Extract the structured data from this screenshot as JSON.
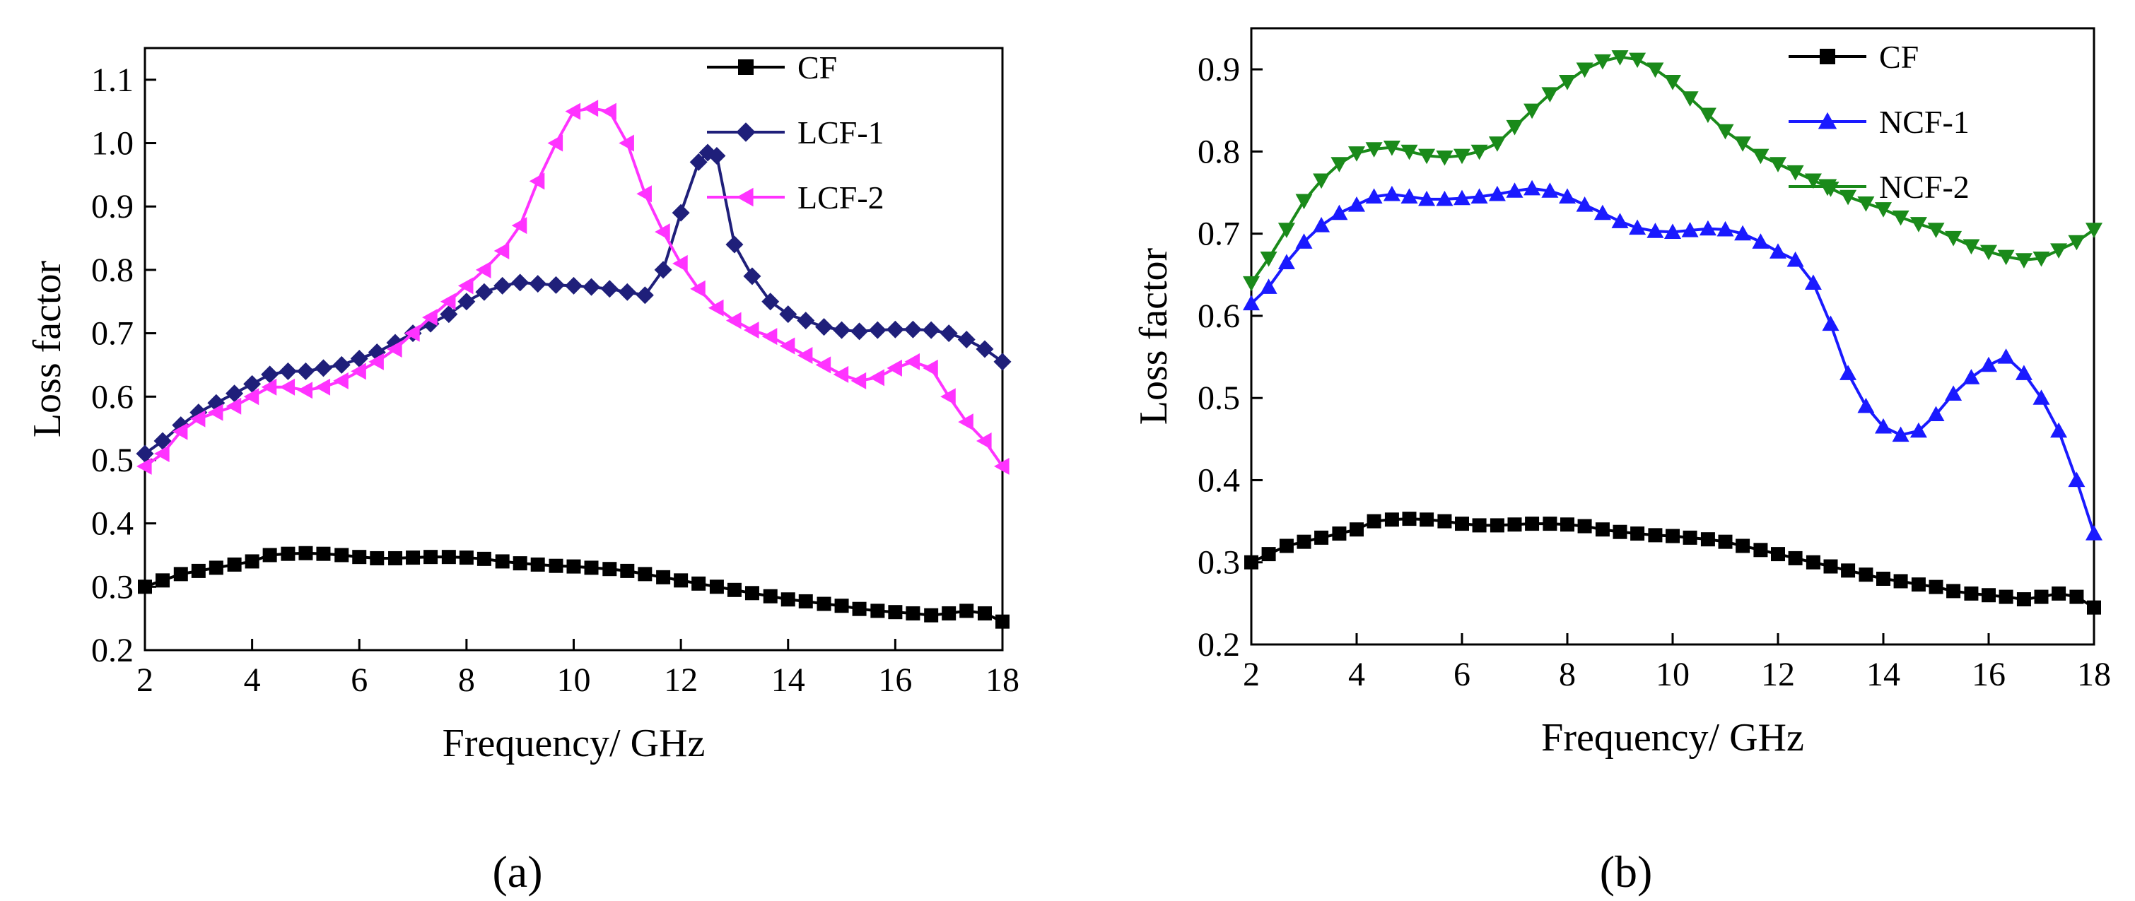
{
  "chart_data": [
    {
      "type": "line",
      "panel_label": "(a)",
      "xlabel": "Frequency/ GHz",
      "ylabel": "Loss factor",
      "xlim": [
        2,
        18
      ],
      "ylim": [
        0.2,
        1.15
      ],
      "xticks": [
        2,
        4,
        6,
        8,
        10,
        12,
        14,
        16,
        18
      ],
      "xtick_labels": [
        "2",
        "4",
        "6",
        "8",
        "10",
        "12",
        "14",
        "16",
        "18"
      ],
      "yticks": [
        0.2,
        0.3,
        0.4,
        0.5,
        0.6,
        0.7,
        0.8,
        0.9,
        1.0,
        1.1
      ],
      "ytick_labels": [
        "0.2",
        "0.3",
        "0.4",
        "0.5",
        "0.6",
        "0.7",
        "0.8",
        "0.9",
        "1.0",
        "1.1"
      ],
      "legend_position": "top-right",
      "series": [
        {
          "name": "CF",
          "color": "#000000",
          "marker": "square",
          "x": [
            2,
            2.33,
            2.67,
            3,
            3.33,
            3.67,
            4,
            4.33,
            4.67,
            5,
            5.33,
            5.67,
            6,
            6.33,
            6.67,
            7,
            7.33,
            7.67,
            8,
            8.33,
            8.67,
            9,
            9.33,
            9.67,
            10,
            10.33,
            10.67,
            11,
            11.33,
            11.67,
            12,
            12.33,
            12.67,
            13,
            13.33,
            13.67,
            14,
            14.33,
            14.67,
            15,
            15.33,
            15.67,
            16,
            16.33,
            16.67,
            17,
            17.33,
            17.67,
            18
          ],
          "y": [
            0.3,
            0.31,
            0.32,
            0.325,
            0.33,
            0.335,
            0.34,
            0.35,
            0.352,
            0.353,
            0.352,
            0.35,
            0.347,
            0.345,
            0.345,
            0.346,
            0.347,
            0.347,
            0.346,
            0.344,
            0.34,
            0.337,
            0.335,
            0.333,
            0.332,
            0.33,
            0.328,
            0.325,
            0.32,
            0.315,
            0.31,
            0.305,
            0.3,
            0.295,
            0.29,
            0.285,
            0.28,
            0.277,
            0.273,
            0.27,
            0.265,
            0.262,
            0.26,
            0.258,
            0.255,
            0.258,
            0.262,
            0.258,
            0.245
          ]
        },
        {
          "name": "LCF-1",
          "color": "#1f1f7a",
          "marker": "diamond",
          "x": [
            2,
            2.33,
            2.67,
            3,
            3.33,
            3.67,
            4,
            4.33,
            4.67,
            5,
            5.33,
            5.67,
            6,
            6.33,
            6.67,
            7,
            7.33,
            7.67,
            8,
            8.33,
            8.67,
            9,
            9.33,
            9.67,
            10,
            10.33,
            10.67,
            11,
            11.33,
            11.67,
            12,
            12.33,
            12.5,
            12.67,
            13,
            13.33,
            13.67,
            14,
            14.33,
            14.67,
            15,
            15.33,
            15.67,
            16,
            16.33,
            16.67,
            17,
            17.33,
            17.67,
            18
          ],
          "y": [
            0.51,
            0.53,
            0.555,
            0.575,
            0.59,
            0.605,
            0.62,
            0.635,
            0.64,
            0.64,
            0.645,
            0.65,
            0.66,
            0.67,
            0.685,
            0.7,
            0.715,
            0.73,
            0.75,
            0.765,
            0.775,
            0.78,
            0.778,
            0.776,
            0.775,
            0.773,
            0.77,
            0.765,
            0.76,
            0.8,
            0.89,
            0.97,
            0.985,
            0.98,
            0.84,
            0.79,
            0.75,
            0.73,
            0.72,
            0.71,
            0.705,
            0.703,
            0.705,
            0.706,
            0.706,
            0.705,
            0.7,
            0.69,
            0.675,
            0.655
          ]
        },
        {
          "name": "LCF-2",
          "color": "#ff33ff",
          "marker": "triangle-left",
          "x": [
            2,
            2.33,
            2.67,
            3,
            3.33,
            3.67,
            4,
            4.33,
            4.67,
            5,
            5.33,
            5.67,
            6,
            6.33,
            6.67,
            7,
            7.33,
            7.67,
            8,
            8.33,
            8.67,
            9,
            9.33,
            9.67,
            10,
            10.33,
            10.67,
            11,
            11.33,
            11.67,
            12,
            12.33,
            12.67,
            13,
            13.33,
            13.67,
            14,
            14.33,
            14.67,
            15,
            15.33,
            15.67,
            16,
            16.33,
            16.67,
            17,
            17.33,
            17.67,
            18
          ],
          "y": [
            0.49,
            0.51,
            0.545,
            0.565,
            0.575,
            0.585,
            0.6,
            0.615,
            0.615,
            0.61,
            0.615,
            0.625,
            0.64,
            0.655,
            0.675,
            0.7,
            0.725,
            0.75,
            0.775,
            0.8,
            0.83,
            0.87,
            0.94,
            1.0,
            1.05,
            1.055,
            1.05,
            1.0,
            0.92,
            0.86,
            0.81,
            0.77,
            0.74,
            0.72,
            0.705,
            0.695,
            0.68,
            0.665,
            0.65,
            0.635,
            0.625,
            0.63,
            0.645,
            0.655,
            0.645,
            0.6,
            0.56,
            0.53,
            0.49
          ]
        }
      ]
    },
    {
      "type": "line",
      "panel_label": "(b)",
      "xlabel": "Frequency/ GHz",
      "ylabel": "Loss factor",
      "xlim": [
        2,
        18
      ],
      "ylim": [
        0.2,
        0.95
      ],
      "xticks": [
        2,
        4,
        6,
        8,
        10,
        12,
        14,
        16,
        18
      ],
      "xtick_labels": [
        "2",
        "4",
        "6",
        "8",
        "10",
        "12",
        "14",
        "16",
        "18"
      ],
      "yticks": [
        0.2,
        0.3,
        0.4,
        0.5,
        0.6,
        0.7,
        0.8,
        0.9
      ],
      "ytick_labels": [
        "0.2",
        "0.3",
        "0.4",
        "0.5",
        "0.6",
        "0.7",
        "0.8",
        "0.9"
      ],
      "legend_position": "top-right",
      "series": [
        {
          "name": "CF",
          "color": "#000000",
          "marker": "square",
          "x": [
            2,
            2.33,
            2.67,
            3,
            3.33,
            3.67,
            4,
            4.33,
            4.67,
            5,
            5.33,
            5.67,
            6,
            6.33,
            6.67,
            7,
            7.33,
            7.67,
            8,
            8.33,
            8.67,
            9,
            9.33,
            9.67,
            10,
            10.33,
            10.67,
            11,
            11.33,
            11.67,
            12,
            12.33,
            12.67,
            13,
            13.33,
            13.67,
            14,
            14.33,
            14.67,
            15,
            15.33,
            15.67,
            16,
            16.33,
            16.67,
            17,
            17.33,
            17.67,
            18
          ],
          "y": [
            0.3,
            0.31,
            0.32,
            0.325,
            0.33,
            0.335,
            0.34,
            0.35,
            0.352,
            0.353,
            0.352,
            0.35,
            0.347,
            0.345,
            0.345,
            0.346,
            0.347,
            0.347,
            0.346,
            0.344,
            0.34,
            0.337,
            0.335,
            0.333,
            0.332,
            0.33,
            0.328,
            0.325,
            0.32,
            0.315,
            0.31,
            0.305,
            0.3,
            0.295,
            0.29,
            0.285,
            0.28,
            0.277,
            0.273,
            0.27,
            0.265,
            0.262,
            0.26,
            0.258,
            0.255,
            0.258,
            0.262,
            0.258,
            0.245
          ]
        },
        {
          "name": "NCF-1",
          "color": "#1a1aff",
          "marker": "triangle-up",
          "x": [
            2,
            2.33,
            2.67,
            3,
            3.33,
            3.67,
            4,
            4.33,
            4.67,
            5,
            5.33,
            5.67,
            6,
            6.33,
            6.67,
            7,
            7.33,
            7.67,
            8,
            8.33,
            8.67,
            9,
            9.33,
            9.67,
            10,
            10.33,
            10.67,
            11,
            11.33,
            11.67,
            12,
            12.33,
            12.67,
            13,
            13.33,
            13.67,
            14,
            14.33,
            14.67,
            15,
            15.33,
            15.67,
            16,
            16.33,
            16.67,
            17,
            17.33,
            17.67,
            18
          ],
          "y": [
            0.615,
            0.635,
            0.665,
            0.69,
            0.71,
            0.725,
            0.735,
            0.745,
            0.748,
            0.745,
            0.742,
            0.742,
            0.743,
            0.745,
            0.748,
            0.752,
            0.755,
            0.752,
            0.745,
            0.735,
            0.725,
            0.715,
            0.707,
            0.703,
            0.702,
            0.704,
            0.706,
            0.705,
            0.7,
            0.69,
            0.678,
            0.668,
            0.64,
            0.59,
            0.53,
            0.49,
            0.465,
            0.455,
            0.46,
            0.48,
            0.505,
            0.525,
            0.54,
            0.55,
            0.53,
            0.5,
            0.46,
            0.4,
            0.335
          ]
        },
        {
          "name": "NCF-2",
          "color": "#1a8a1a",
          "marker": "triangle-down",
          "x": [
            2,
            2.33,
            2.67,
            3,
            3.33,
            3.67,
            4,
            4.33,
            4.67,
            5,
            5.33,
            5.67,
            6,
            6.33,
            6.67,
            7,
            7.33,
            7.67,
            8,
            8.33,
            8.67,
            9,
            9.33,
            9.67,
            10,
            10.33,
            10.67,
            11,
            11.33,
            11.67,
            12,
            12.33,
            12.67,
            13,
            13.33,
            13.67,
            14,
            14.33,
            14.67,
            15,
            15.33,
            15.67,
            16,
            16.33,
            16.67,
            17,
            17.33,
            17.67,
            18
          ],
          "y": [
            0.64,
            0.67,
            0.705,
            0.74,
            0.765,
            0.785,
            0.798,
            0.803,
            0.805,
            0.8,
            0.795,
            0.793,
            0.795,
            0.8,
            0.81,
            0.83,
            0.85,
            0.87,
            0.885,
            0.9,
            0.91,
            0.915,
            0.912,
            0.9,
            0.885,
            0.865,
            0.845,
            0.825,
            0.81,
            0.795,
            0.785,
            0.775,
            0.765,
            0.755,
            0.745,
            0.737,
            0.73,
            0.72,
            0.712,
            0.705,
            0.695,
            0.685,
            0.678,
            0.672,
            0.668,
            0.67,
            0.68,
            0.69,
            0.705
          ]
        }
      ]
    }
  ]
}
